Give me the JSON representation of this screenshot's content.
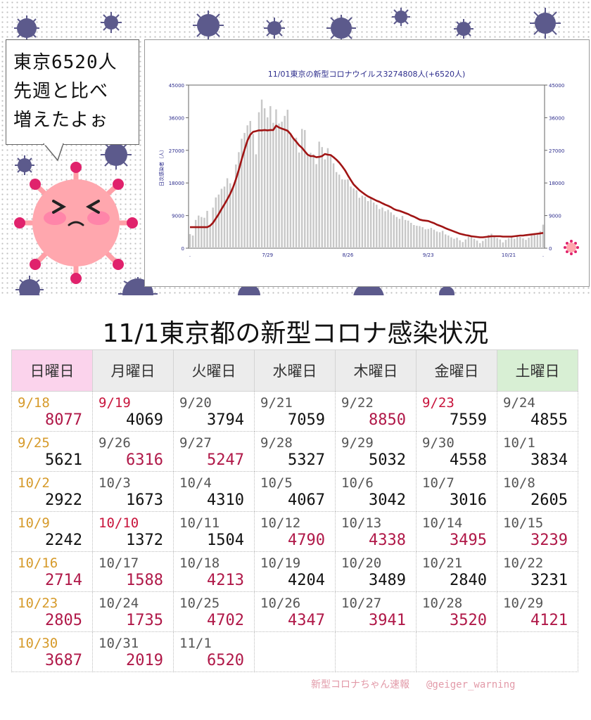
{
  "speech_bubble": {
    "lines": [
      "東京6520人",
      "先週と比べ",
      "増えたよぉ"
    ]
  },
  "main_title": "11/1東京都の新型コロナ感染状況",
  "table": {
    "headers": [
      "日曜日",
      "月曜日",
      "火曜日",
      "水曜日",
      "木曜日",
      "金曜日",
      "土曜日"
    ],
    "rows": [
      [
        {
          "date": "9/18",
          "value": "8077",
          "date_style": "sun",
          "up": true
        },
        {
          "date": "9/19",
          "value": "4069",
          "date_style": "hol",
          "up": false
        },
        {
          "date": "9/20",
          "value": "3794",
          "date_style": "",
          "up": false
        },
        {
          "date": "9/21",
          "value": "7059",
          "date_style": "",
          "up": false
        },
        {
          "date": "9/22",
          "value": "8850",
          "date_style": "",
          "up": true
        },
        {
          "date": "9/23",
          "value": "7559",
          "date_style": "hol",
          "up": false
        },
        {
          "date": "9/24",
          "value": "4855",
          "date_style": "",
          "up": false
        }
      ],
      [
        {
          "date": "9/25",
          "value": "5621",
          "date_style": "sun",
          "up": false
        },
        {
          "date": "9/26",
          "value": "6316",
          "date_style": "",
          "up": true
        },
        {
          "date": "9/27",
          "value": "5247",
          "date_style": "",
          "up": true
        },
        {
          "date": "9/28",
          "value": "5327",
          "date_style": "",
          "up": false
        },
        {
          "date": "9/29",
          "value": "5032",
          "date_style": "",
          "up": false
        },
        {
          "date": "9/30",
          "value": "4558",
          "date_style": "",
          "up": false
        },
        {
          "date": "10/1",
          "value": "3834",
          "date_style": "",
          "up": false
        }
      ],
      [
        {
          "date": "10/2",
          "value": "2922",
          "date_style": "sun",
          "up": false
        },
        {
          "date": "10/3",
          "value": "1673",
          "date_style": "",
          "up": false
        },
        {
          "date": "10/4",
          "value": "4310",
          "date_style": "",
          "up": false
        },
        {
          "date": "10/5",
          "value": "4067",
          "date_style": "",
          "up": false
        },
        {
          "date": "10/6",
          "value": "3042",
          "date_style": "",
          "up": false
        },
        {
          "date": "10/7",
          "value": "3016",
          "date_style": "",
          "up": false
        },
        {
          "date": "10/8",
          "value": "2605",
          "date_style": "",
          "up": false
        }
      ],
      [
        {
          "date": "10/9",
          "value": "2242",
          "date_style": "sun",
          "up": false
        },
        {
          "date": "10/10",
          "value": "1372",
          "date_style": "hol",
          "up": false
        },
        {
          "date": "10/11",
          "value": "1504",
          "date_style": "",
          "up": false
        },
        {
          "date": "10/12",
          "value": "4790",
          "date_style": "",
          "up": true
        },
        {
          "date": "10/13",
          "value": "4338",
          "date_style": "",
          "up": true
        },
        {
          "date": "10/14",
          "value": "3495",
          "date_style": "",
          "up": true
        },
        {
          "date": "10/15",
          "value": "3239",
          "date_style": "",
          "up": true
        }
      ],
      [
        {
          "date": "10/16",
          "value": "2714",
          "date_style": "sun",
          "up": true
        },
        {
          "date": "10/17",
          "value": "1588",
          "date_style": "",
          "up": true
        },
        {
          "date": "10/18",
          "value": "4213",
          "date_style": "",
          "up": true
        },
        {
          "date": "10/19",
          "value": "4204",
          "date_style": "",
          "up": false
        },
        {
          "date": "10/20",
          "value": "3489",
          "date_style": "",
          "up": false
        },
        {
          "date": "10/21",
          "value": "2840",
          "date_style": "",
          "up": false
        },
        {
          "date": "10/22",
          "value": "3231",
          "date_style": "",
          "up": false
        }
      ],
      [
        {
          "date": "10/23",
          "value": "2805",
          "date_style": "sun",
          "up": true
        },
        {
          "date": "10/24",
          "value": "1735",
          "date_style": "",
          "up": true
        },
        {
          "date": "10/25",
          "value": "4702",
          "date_style": "",
          "up": true
        },
        {
          "date": "10/26",
          "value": "4347",
          "date_style": "",
          "up": true
        },
        {
          "date": "10/27",
          "value": "3941",
          "date_style": "",
          "up": true
        },
        {
          "date": "10/28",
          "value": "3520",
          "date_style": "",
          "up": true
        },
        {
          "date": "10/29",
          "value": "4121",
          "date_style": "",
          "up": true
        }
      ],
      [
        {
          "date": "10/30",
          "value": "3687",
          "date_style": "sun",
          "up": true
        },
        {
          "date": "10/31",
          "value": "2019",
          "date_style": "",
          "up": true
        },
        {
          "date": "11/1",
          "value": "6520",
          "date_style": "",
          "up": true
        },
        {
          "date": "",
          "value": "",
          "date_style": "",
          "up": false
        },
        {
          "date": "",
          "value": "",
          "date_style": "",
          "up": false
        },
        {
          "date": "",
          "value": "",
          "date_style": "",
          "up": false
        },
        {
          "date": "",
          "value": "",
          "date_style": "",
          "up": false
        }
      ]
    ]
  },
  "footer": {
    "credit": "新型コロナちゃん速報",
    "handle": "@geiger_warning"
  },
  "colors": {
    "bars": "#c8c8c8",
    "line": "#a01414",
    "up_value": "#b01848",
    "sunday_date": "#d69a2a",
    "holiday_date": "#c8143c"
  },
  "chart_data": {
    "type": "bar",
    "title": "11/01東京の新型コロナウイルス3274808人(+6520人)",
    "ylabel": "日次感染者（人）",
    "ylim": [
      0,
      45000
    ],
    "yticks": [
      "0",
      "9000",
      "18000",
      "27000",
      "36000",
      "45000"
    ],
    "xtick_labels": [
      ".",
      "7/29",
      "8/26",
      "9/23",
      "10/21",
      "."
    ],
    "xtick_index": [
      0,
      27,
      55,
      83,
      111,
      123
    ],
    "series": [
      {
        "name": "",
        "values": [
          3900,
          3500,
          7800,
          9000,
          8600,
          8400,
          10300,
          6500,
          11200,
          14000,
          14800,
          16400,
          17000,
          19300,
          17900,
          16700,
          23100,
          26500,
          30200,
          31800,
          33900,
          35100,
          31500,
          25900,
          37500,
          41000,
          38600,
          36100,
          39200,
          34600,
          38300,
          34400,
          34900,
          36500,
          38200,
          31200,
          30100,
          30500,
          26400,
          32900,
          32600,
          25500,
          26300,
          25900,
          23200,
          29400,
          27900,
          24500,
          27600,
          25900,
          23400,
          21000,
          20300,
          19000,
          18900,
          19000,
          17000,
          16500,
          16000,
          13900,
          14500,
          14200,
          13000,
          13900,
          12600,
          12000,
          10800,
          11200,
          10200,
          10600,
          9900,
          9200,
          8600,
          8100,
          8900,
          7800,
          7600,
          7000,
          6400,
          6200,
          6100,
          5800,
          5200,
          5300,
          5600,
          5100,
          4600,
          4400,
          4800,
          3800,
          3500,
          3000,
          2600,
          2900,
          2200,
          1700,
          2400,
          3200,
          3400,
          2600,
          2100,
          1400,
          2000,
          2600,
          3700,
          4000,
          3300,
          2800,
          2400,
          1600,
          2300,
          2800,
          3100,
          2600,
          3300,
          3100,
          2700,
          2300,
          2900,
          3500,
          4100,
          3700,
          4700,
          6500
        ]
      },
      {
        "name": "",
        "values": [
          5800,
          5800,
          5800,
          5800,
          5800,
          5800,
          5800,
          6200,
          7000,
          8200,
          9400,
          10800,
          12100,
          13500,
          15000,
          16800,
          19000,
          21600,
          24500,
          27200,
          29700,
          31300,
          32100,
          32300,
          32500,
          32500,
          32600,
          32500,
          32600,
          32600,
          33800,
          33300,
          33000,
          32700,
          32400,
          31500,
          30300,
          29400,
          28400,
          27700,
          26700,
          25800,
          25400,
          25400,
          25100,
          25200,
          25400,
          26000,
          25800,
          25700,
          25100,
          24400,
          23600,
          22600,
          21500,
          20100,
          18800,
          17600,
          16800,
          16000,
          15400,
          14800,
          14300,
          13900,
          13500,
          13100,
          12800,
          12400,
          12000,
          11700,
          11300,
          10800,
          10500,
          10300,
          10000,
          9700,
          9400,
          9000,
          8700,
          8300,
          7900,
          7700,
          7600,
          7500,
          7200,
          6900,
          6500,
          6200,
          5900,
          5500,
          5200,
          4900,
          4600,
          4300,
          4000,
          3800,
          3600,
          3500,
          3300,
          3200,
          3100,
          3000,
          3000,
          3100,
          3200,
          3300,
          3300,
          3300,
          3300,
          3200,
          3200,
          3200,
          3200,
          3300,
          3400,
          3500,
          3500,
          3600,
          3700,
          3800,
          3900,
          4000,
          4100,
          4200
        ]
      }
    ]
  }
}
